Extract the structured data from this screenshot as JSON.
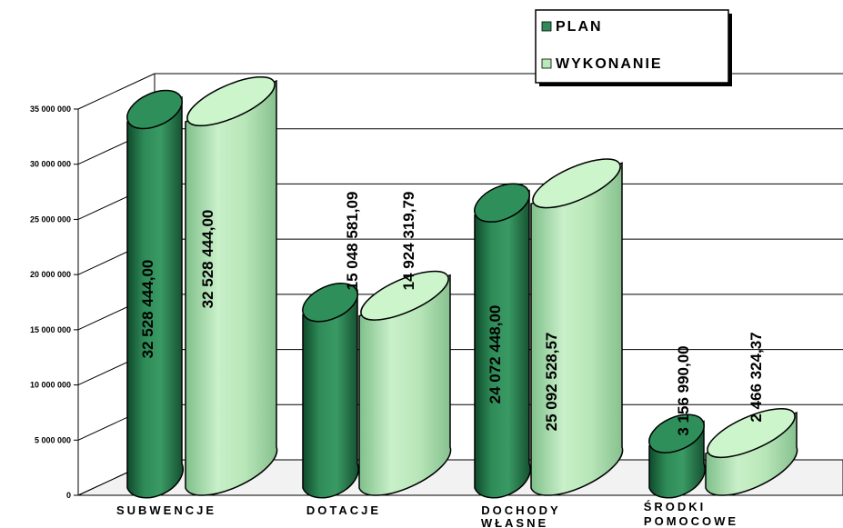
{
  "chart_data": {
    "type": "bar",
    "categories": [
      "SUBWENCJE",
      "DOTACJE",
      "DOCHODY WŁASNE",
      "ŚRODKI POMOCOWE"
    ],
    "series": [
      {
        "name": "PLAN",
        "values": [
          32528444.0,
          15048581.09,
          24072448.0,
          3156990.0
        ],
        "labels": [
          "32 528 444,00",
          "15 048 581,09",
          "24 072 448,00",
          "3 156 990,00"
        ],
        "color": "#2e8b57"
      },
      {
        "name": "WYKONANIE",
        "values": [
          32528444.0,
          14924319.79,
          25092528.57,
          2466324.37
        ],
        "labels": [
          "32 528 444,00",
          "14 924 319,79",
          "25 092 528,57",
          "2 466 324,37"
        ],
        "color": "#b8eab8"
      }
    ],
    "y_ticks": [
      0,
      5000000,
      10000000,
      15000000,
      20000000,
      25000000,
      30000000,
      35000000
    ],
    "y_tick_labels": [
      "0",
      "5 000 000",
      "10 000 000",
      "15 000 000",
      "20 000 000",
      "25 000 000",
      "30 000 000",
      "35 000 000"
    ],
    "ylim": [
      0,
      35000000
    ],
    "grid": true,
    "legend_position": "top-right",
    "style": "3d-cylinder"
  }
}
